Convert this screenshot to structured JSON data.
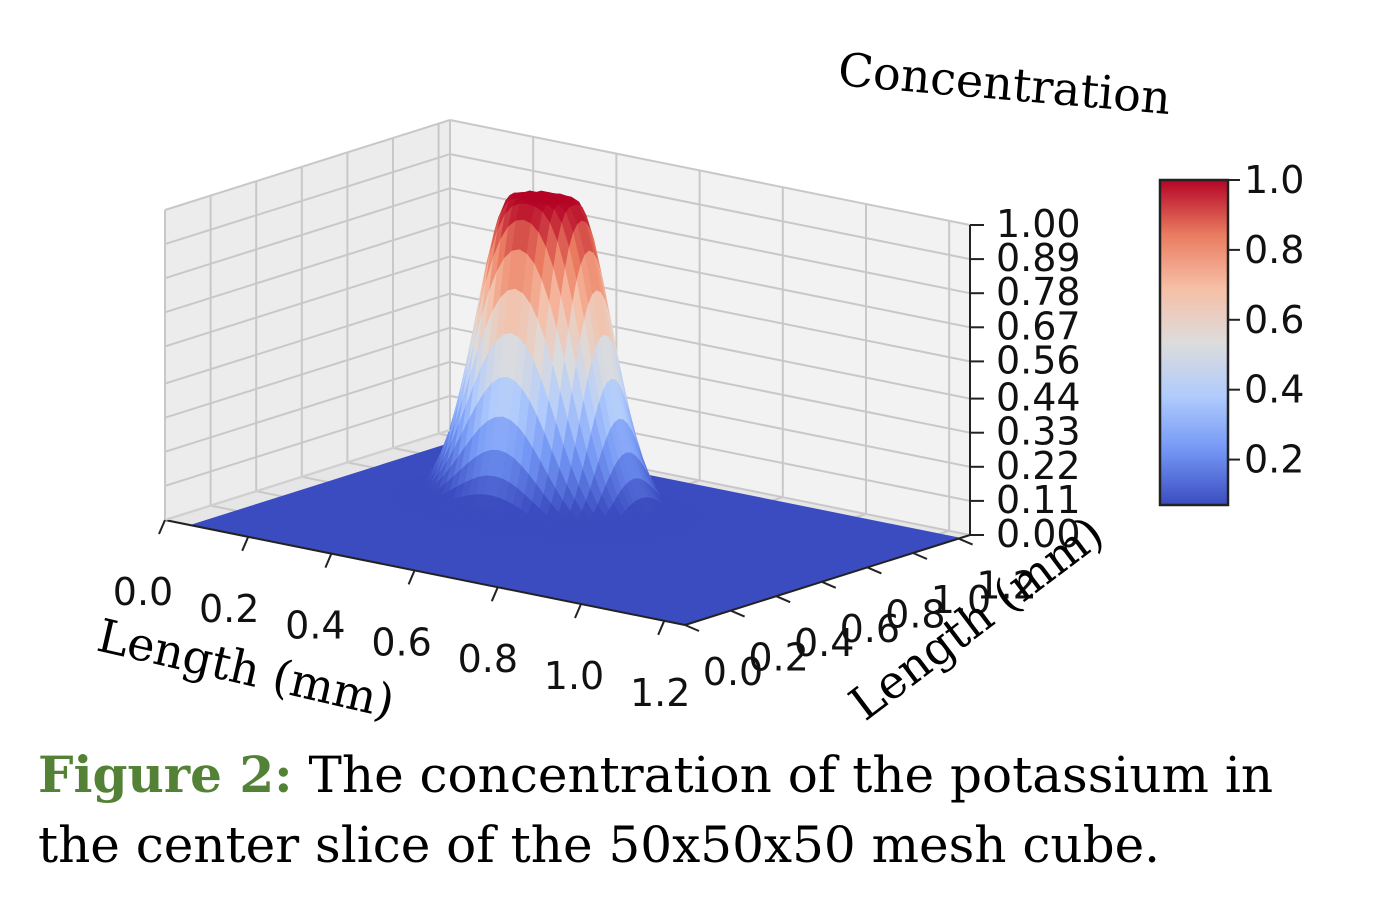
{
  "chart_data": {
    "type": "surface3d",
    "xlabel": "Length (mm)",
    "ylabel": "Length (mm)",
    "zlabel": "Concentration",
    "x_ticks": [
      "0.0",
      "0.2",
      "0.4",
      "0.6",
      "0.8",
      "1.0",
      "1.2"
    ],
    "y_ticks": [
      "0.0",
      "0.2",
      "0.4",
      "0.6",
      "0.8",
      "1.0",
      "1.2"
    ],
    "z_ticks": [
      "0.00",
      "0.11",
      "0.22",
      "0.33",
      "0.44",
      "0.56",
      "0.67",
      "0.78",
      "0.89",
      "1.00"
    ],
    "xlim": [
      0,
      1.25
    ],
    "ylim": [
      0,
      1.25
    ],
    "zlim": [
      0,
      1.0
    ],
    "grid": true,
    "surface": {
      "description_values": "single concentration peak on a flat zero plane",
      "baseline": 0.0,
      "peak_value": 1.0,
      "peak_center": [
        0.5,
        0.75
      ],
      "plateau_radius": 0.065,
      "falloff_width": 0.11
    },
    "colorbar": {
      "colormap": "coolwarm",
      "ticks": [
        "0.2",
        "0.4",
        "0.6",
        "0.8",
        "1.0"
      ],
      "range": [
        0.07,
        1.0
      ],
      "colors": [
        "#3b4cc0",
        "#7396f5",
        "#b0cbfc",
        "#dddcdc",
        "#f6bfa6",
        "#ea7b60",
        "#b40426"
      ]
    }
  },
  "caption": {
    "label": "Figure 2:",
    "text": " The concentration of the potassium in the center slice of the 50x50x50 mesh cube."
  }
}
